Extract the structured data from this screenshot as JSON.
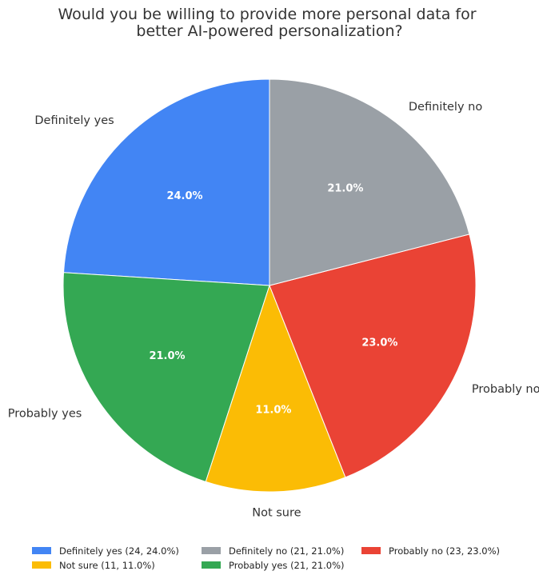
{
  "chart_data": {
    "type": "pie",
    "title": [
      "Would you be willing to provide more personal data for",
      "better AI-powered personalization?"
    ],
    "start_angle_deg": 90,
    "direction": "counterclockwise",
    "slices": [
      {
        "label": "Definitely yes",
        "value": 24,
        "percent": "24.0%",
        "legend": "Definitely yes (24, 24.0%)",
        "color": "#4285F4"
      },
      {
        "label": "Probably yes",
        "value": 21,
        "percent": "21.0%",
        "legend": "Probably yes (21, 21.0%)",
        "color": "#34A853"
      },
      {
        "label": "Not sure",
        "value": 11,
        "percent": "11.0%",
        "legend": "Not sure (11, 11.0%)",
        "color": "#FBBC05"
      },
      {
        "label": "Probably no",
        "value": 23,
        "percent": "23.0%",
        "legend": "Probably no (23, 23.0%)",
        "color": "#EA4335"
      },
      {
        "label": "Definitely no",
        "value": 21,
        "percent": "21.0%",
        "legend": "Definitely no (21, 21.0%)",
        "color": "#9AA0A6"
      }
    ],
    "legend_position": "bottom",
    "legend_order": [
      0,
      2,
      4,
      1,
      3
    ]
  }
}
